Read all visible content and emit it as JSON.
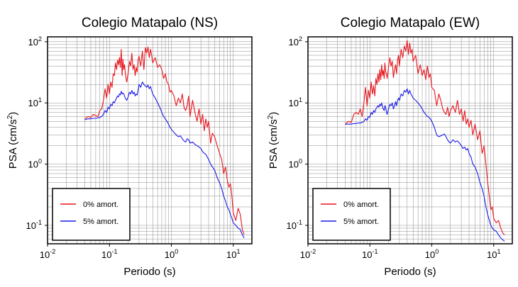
{
  "legend_labels": [
    "0% amort.",
    "5% amort."
  ],
  "series_colors": [
    "#e8141c",
    "#1a1ae8"
  ],
  "chart_data": [
    {
      "type": "line",
      "title": "Colegio Matapalo (NS)",
      "xlabel": "Periodo (s)",
      "ylabel": "PSA (cm/s",
      "ylabel_sup": "2",
      "ylabel_close": ")",
      "x_scale": "log",
      "y_scale": "log",
      "xlim": [
        0.01,
        20
      ],
      "ylim": [
        0.05,
        120
      ],
      "x_ticks": [
        {
          "base": "10",
          "exp": "-2",
          "value": 0.01
        },
        {
          "base": "10",
          "exp": "-1",
          "value": 0.1
        },
        {
          "base": "10",
          "exp": "0",
          "value": 1
        },
        {
          "base": "10",
          "exp": "1",
          "value": 10
        }
      ],
      "y_ticks": [
        {
          "base": "10",
          "exp": "-1",
          "value": 0.1
        },
        {
          "base": "10",
          "exp": "0",
          "value": 1
        },
        {
          "base": "10",
          "exp": "1",
          "value": 10
        },
        {
          "base": "10",
          "exp": "2",
          "value": 100
        }
      ],
      "grid": true,
      "legend_position": "bottom-left",
      "series": [
        {
          "name": "0% amort.",
          "x": [
            0.04,
            0.045,
            0.05,
            0.055,
            0.06,
            0.065,
            0.07,
            0.075,
            0.08,
            0.085,
            0.09,
            0.095,
            0.1,
            0.105,
            0.11,
            0.115,
            0.12,
            0.125,
            0.13,
            0.135,
            0.14,
            0.145,
            0.15,
            0.155,
            0.16,
            0.165,
            0.17,
            0.175,
            0.18,
            0.185,
            0.19,
            0.2,
            0.21,
            0.22,
            0.23,
            0.24,
            0.25,
            0.26,
            0.27,
            0.28,
            0.29,
            0.3,
            0.32,
            0.34,
            0.36,
            0.38,
            0.4,
            0.42,
            0.44,
            0.46,
            0.48,
            0.5,
            0.55,
            0.6,
            0.65,
            0.7,
            0.75,
            0.8,
            0.85,
            0.9,
            0.95,
            1.0,
            1.1,
            1.2,
            1.3,
            1.4,
            1.5,
            1.6,
            1.7,
            1.8,
            1.9,
            2.0,
            2.2,
            2.4,
            2.6,
            2.8,
            3.0,
            3.2,
            3.4,
            3.6,
            3.8,
            4.0,
            4.3,
            4.6,
            5.0,
            5.5,
            6.0,
            6.5,
            7.0,
            7.5,
            8.0,
            8.5,
            9.0,
            9.5,
            10,
            11,
            12,
            13,
            14,
            15
          ],
          "y": [
            5.5,
            6.0,
            5.8,
            6.5,
            6.2,
            6.0,
            7.5,
            8.0,
            11.0,
            17.0,
            12.0,
            20.0,
            14.0,
            22.0,
            18.0,
            30.0,
            28.0,
            45.0,
            35.0,
            50.0,
            42.0,
            55.0,
            38.0,
            75.0,
            28.0,
            52.0,
            35.0,
            42.0,
            32.0,
            25.0,
            22.0,
            30.0,
            48.0,
            40.0,
            65.0,
            35.0,
            42.0,
            28.0,
            38.0,
            32.0,
            50.0,
            58.0,
            40.0,
            70.0,
            35.0,
            80.0,
            65.0,
            82.0,
            55.0,
            75.0,
            60.0,
            45.0,
            55.0,
            38.0,
            42.0,
            35.0,
            25.0,
            30.0,
            22.0,
            20.0,
            15.0,
            16.0,
            13.0,
            9.0,
            12.0,
            10.0,
            14.0,
            8.5,
            7.5,
            9.0,
            13.0,
            6.0,
            11.0,
            7.0,
            5.0,
            8.0,
            4.5,
            6.5,
            3.5,
            5.5,
            4.0,
            5.0,
            2.2,
            3.2,
            2.8,
            2.0,
            1.5,
            1.2,
            0.7,
            0.9,
            0.55,
            0.42,
            0.48,
            0.3,
            0.16,
            0.12,
            0.19,
            0.15,
            0.085,
            0.07
          ]
        },
        {
          "name": "5% amort.",
          "x": [
            0.04,
            0.045,
            0.05,
            0.055,
            0.06,
            0.065,
            0.07,
            0.075,
            0.08,
            0.085,
            0.09,
            0.095,
            0.1,
            0.105,
            0.11,
            0.115,
            0.12,
            0.125,
            0.13,
            0.135,
            0.14,
            0.145,
            0.15,
            0.155,
            0.16,
            0.165,
            0.17,
            0.175,
            0.18,
            0.185,
            0.19,
            0.2,
            0.21,
            0.22,
            0.23,
            0.24,
            0.25,
            0.26,
            0.27,
            0.28,
            0.29,
            0.3,
            0.32,
            0.34,
            0.36,
            0.38,
            0.4,
            0.42,
            0.44,
            0.46,
            0.48,
            0.5,
            0.55,
            0.6,
            0.65,
            0.7,
            0.75,
            0.8,
            0.85,
            0.9,
            0.95,
            1.0,
            1.1,
            1.2,
            1.3,
            1.4,
            1.5,
            1.6,
            1.7,
            1.8,
            1.9,
            2.0,
            2.2,
            2.4,
            2.6,
            2.8,
            3.0,
            3.2,
            3.4,
            3.6,
            3.8,
            4.0,
            4.3,
            4.6,
            5.0,
            5.5,
            6.0,
            6.5,
            7.0,
            7.5,
            8.0,
            8.5,
            9.0,
            9.5,
            10,
            11,
            12,
            13,
            14,
            15
          ],
          "y": [
            5.3,
            5.5,
            5.5,
            5.6,
            5.6,
            5.7,
            5.8,
            6.0,
            6.5,
            7.5,
            7.0,
            8.5,
            8.0,
            9.5,
            9.0,
            10.5,
            10.0,
            11.0,
            12.0,
            13.0,
            12.5,
            14.0,
            13.5,
            15.5,
            14.0,
            14.5,
            14.0,
            13.0,
            12.0,
            11.5,
            11.0,
            12.5,
            15.0,
            14.0,
            16.0,
            14.0,
            15.0,
            13.0,
            14.0,
            13.5,
            16.0,
            20.0,
            18.0,
            22.0,
            20.0,
            19.0,
            18.0,
            19.5,
            17.0,
            18.5,
            16.0,
            14.0,
            12.0,
            10.0,
            8.5,
            7.0,
            6.0,
            5.5,
            5.0,
            4.5,
            4.0,
            3.7,
            3.3,
            3.0,
            2.8,
            2.9,
            2.6,
            2.4,
            2.3,
            2.6,
            2.5,
            2.2,
            2.3,
            2.1,
            2.0,
            1.9,
            1.8,
            1.6,
            1.5,
            1.45,
            1.3,
            1.2,
            1.0,
            0.9,
            0.8,
            0.6,
            0.5,
            0.4,
            0.3,
            0.25,
            0.2,
            0.18,
            0.15,
            0.13,
            0.11,
            0.1,
            0.09,
            0.085,
            0.07,
            0.062
          ]
        }
      ]
    },
    {
      "type": "line",
      "title": "Colegio Matapalo (EW)",
      "xlabel": "Periodo (s)",
      "ylabel": "PSA (cm/s",
      "ylabel_sup": "2",
      "ylabel_close": ")",
      "x_scale": "log",
      "y_scale": "log",
      "xlim": [
        0.01,
        20
      ],
      "ylim": [
        0.05,
        120
      ],
      "x_ticks": [
        {
          "base": "10",
          "exp": "-2",
          "value": 0.01
        },
        {
          "base": "10",
          "exp": "-1",
          "value": 0.1
        },
        {
          "base": "10",
          "exp": "0",
          "value": 1
        },
        {
          "base": "10",
          "exp": "1",
          "value": 10
        }
      ],
      "y_ticks": [
        {
          "base": "10",
          "exp": "-1",
          "value": 0.1
        },
        {
          "base": "10",
          "exp": "0",
          "value": 1
        },
        {
          "base": "10",
          "exp": "1",
          "value": 10
        },
        {
          "base": "10",
          "exp": "2",
          "value": 100
        }
      ],
      "grid": true,
      "legend_position": "bottom-left",
      "series": [
        {
          "name": "0% amort.",
          "x": [
            0.04,
            0.045,
            0.05,
            0.055,
            0.06,
            0.065,
            0.07,
            0.075,
            0.08,
            0.085,
            0.09,
            0.095,
            0.1,
            0.105,
            0.11,
            0.115,
            0.12,
            0.125,
            0.13,
            0.135,
            0.14,
            0.145,
            0.15,
            0.155,
            0.16,
            0.165,
            0.17,
            0.175,
            0.18,
            0.185,
            0.19,
            0.2,
            0.21,
            0.22,
            0.23,
            0.24,
            0.25,
            0.26,
            0.27,
            0.28,
            0.29,
            0.3,
            0.32,
            0.34,
            0.36,
            0.38,
            0.4,
            0.42,
            0.44,
            0.46,
            0.48,
            0.5,
            0.55,
            0.6,
            0.65,
            0.7,
            0.75,
            0.8,
            0.85,
            0.9,
            0.95,
            1.0,
            1.1,
            1.2,
            1.3,
            1.4,
            1.5,
            1.6,
            1.7,
            1.8,
            1.9,
            2.0,
            2.2,
            2.4,
            2.6,
            2.8,
            3.0,
            3.2,
            3.4,
            3.6,
            3.8,
            4.0,
            4.3,
            4.6,
            5.0,
            5.5,
            6.0,
            6.5,
            7.0,
            7.5,
            8.0,
            8.5,
            9.0,
            9.5,
            10,
            11,
            12,
            13,
            14,
            15
          ],
          "y": [
            4.5,
            5.0,
            4.8,
            6.5,
            7.0,
            6.5,
            8.0,
            6.0,
            10.0,
            18.0,
            9.0,
            16.0,
            12.0,
            22.0,
            14.0,
            19.0,
            13.0,
            25.0,
            20.0,
            30.0,
            22.0,
            35.0,
            24.0,
            42.0,
            28.0,
            34.0,
            25.0,
            45.0,
            32.0,
            30.0,
            25.0,
            38.0,
            55.0,
            40.0,
            48.0,
            26.0,
            35.0,
            42.0,
            30.0,
            50.0,
            60.0,
            40.0,
            75.0,
            55.0,
            85.0,
            70.0,
            105.0,
            62.0,
            95.0,
            65.0,
            75.0,
            48.0,
            60.0,
            30.0,
            42.0,
            28.0,
            35.0,
            24.0,
            40.0,
            26.0,
            30.0,
            18.0,
            16.0,
            9.0,
            14.0,
            11.0,
            8.0,
            7.0,
            6.5,
            8.5,
            6.0,
            7.5,
            9.0,
            7.0,
            11.0,
            6.5,
            8.0,
            5.0,
            7.5,
            4.5,
            5.5,
            4.0,
            5.2,
            3.0,
            4.5,
            2.5,
            3.5,
            1.5,
            2.0,
            1.0,
            0.5,
            0.3,
            0.18,
            0.2,
            0.13,
            0.11,
            0.12,
            0.09,
            0.075,
            0.07
          ]
        },
        {
          "name": "5% amort.",
          "x": [
            0.04,
            0.045,
            0.05,
            0.055,
            0.06,
            0.065,
            0.07,
            0.075,
            0.08,
            0.085,
            0.09,
            0.095,
            0.1,
            0.105,
            0.11,
            0.115,
            0.12,
            0.125,
            0.13,
            0.135,
            0.14,
            0.145,
            0.15,
            0.155,
            0.16,
            0.165,
            0.17,
            0.175,
            0.18,
            0.185,
            0.19,
            0.2,
            0.21,
            0.22,
            0.23,
            0.24,
            0.25,
            0.26,
            0.27,
            0.28,
            0.29,
            0.3,
            0.32,
            0.34,
            0.36,
            0.38,
            0.4,
            0.42,
            0.44,
            0.46,
            0.48,
            0.5,
            0.55,
            0.6,
            0.65,
            0.7,
            0.75,
            0.8,
            0.85,
            0.9,
            0.95,
            1.0,
            1.1,
            1.2,
            1.3,
            1.4,
            1.5,
            1.6,
            1.7,
            1.8,
            1.9,
            2.0,
            2.2,
            2.4,
            2.6,
            2.8,
            3.0,
            3.2,
            3.4,
            3.6,
            3.8,
            4.0,
            4.3,
            4.6,
            5.0,
            5.5,
            6.0,
            6.5,
            7.0,
            7.5,
            8.0,
            8.5,
            9.0,
            9.5,
            10,
            11,
            12,
            13,
            14,
            15
          ],
          "y": [
            4.5,
            4.5,
            4.5,
            4.6,
            4.6,
            4.7,
            4.7,
            4.8,
            5.0,
            5.5,
            5.2,
            6.0,
            5.8,
            7.0,
            6.5,
            7.5,
            7.0,
            8.0,
            8.5,
            9.0,
            8.5,
            9.5,
            9.0,
            10.0,
            8.5,
            8.0,
            7.5,
            9.0,
            8.5,
            7.0,
            6.5,
            8.0,
            9.5,
            9.0,
            10.0,
            8.0,
            9.0,
            10.5,
            9.0,
            11.0,
            12.0,
            11.0,
            14.0,
            13.0,
            16.0,
            15.0,
            17.0,
            14.0,
            16.0,
            14.0,
            13.0,
            12.0,
            11.0,
            10.0,
            9.0,
            8.0,
            7.0,
            6.5,
            6.0,
            5.8,
            5.5,
            5.0,
            4.0,
            3.0,
            2.8,
            2.9,
            3.0,
            3.1,
            2.8,
            2.5,
            2.3,
            2.2,
            2.5,
            2.3,
            2.4,
            2.2,
            2.0,
            1.8,
            1.9,
            1.7,
            1.8,
            1.5,
            1.3,
            1.0,
            0.9,
            0.7,
            0.5,
            0.4,
            0.3,
            0.2,
            0.15,
            0.12,
            0.1,
            0.09,
            0.085,
            0.08,
            0.07,
            0.062,
            0.058,
            0.055
          ]
        }
      ]
    }
  ]
}
